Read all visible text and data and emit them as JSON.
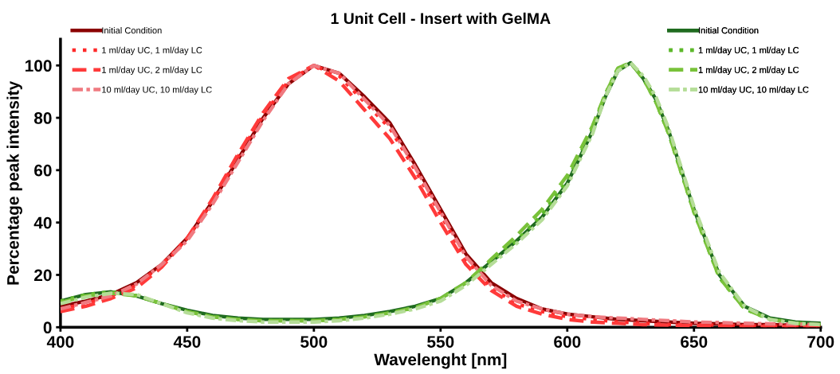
{
  "chart_data": {
    "type": "line",
    "title": "1 Unit Cell - Insert with GelMA",
    "xlabel": "Wavelenght [nm]",
    "ylabel": "Percentage peak intensity",
    "x": [
      400,
      410,
      420,
      430,
      440,
      450,
      460,
      470,
      480,
      490,
      500,
      510,
      520,
      530,
      540,
      550,
      560,
      570,
      580,
      590,
      600,
      610,
      620,
      630,
      640,
      650,
      660,
      670,
      680,
      690,
      700
    ],
    "xlim": [
      400,
      700
    ],
    "xticks": [
      400,
      450,
      500,
      550,
      600,
      650,
      700
    ],
    "ylim": [
      0,
      110
    ],
    "yticks": [
      0,
      20,
      40,
      60,
      80,
      100
    ],
    "grid": false,
    "legend": "top",
    "marker": "none",
    "series": [
      {
        "name": "Initial Condition",
        "color": "#8b0000",
        "line_style": "solid",
        "values": [
          8,
          10,
          12.5,
          17,
          24,
          34,
          48,
          64,
          80,
          93,
          100,
          97,
          88,
          78,
          62,
          45,
          28,
          17,
          11,
          7,
          5,
          4,
          3,
          2.5,
          2,
          1.5,
          1.3,
          1,
          1,
          0.8,
          0.5
        ]
      },
      {
        "name": "1 ml/day UC, 1 ml/day LC",
        "color": "#ff2a2a",
        "line_style": "dotted",
        "values": [
          7,
          9,
          12,
          16,
          24,
          34,
          48,
          65,
          81,
          94,
          100,
          96,
          86,
          76,
          60,
          43,
          26,
          15,
          9,
          6,
          4,
          3,
          2,
          1.5,
          1,
          1,
          0.8,
          0.6,
          0.5,
          0.4,
          0.3
        ]
      },
      {
        "name": "1 ml/day UC, 2 ml/day LC",
        "color": "#ff3a3a",
        "line_style": "dashed",
        "values": [
          6,
          8,
          11,
          15,
          23,
          34,
          49,
          66,
          82,
          95,
          100,
          94,
          83,
          72,
          57,
          40,
          24,
          14,
          8,
          5,
          3,
          2,
          1.5,
          1,
          0.8,
          0.6,
          0.5,
          0.4,
          0.3,
          0.3,
          0.2
        ]
      },
      {
        "name": "10 ml/day UC, 10 ml/day LC",
        "color": "#f07a80",
        "line_style": "dashdot",
        "values": [
          7,
          9.5,
          12,
          16.5,
          24,
          33,
          47,
          63,
          79,
          93,
          100,
          97,
          87,
          77,
          61,
          44,
          27,
          16,
          10,
          7,
          5,
          4,
          3.5,
          3,
          2.5,
          2,
          1.8,
          1.5,
          1.3,
          1.2,
          1
        ]
      },
      {
        "name": "Initial Condition",
        "color": "#1f6b1f",
        "line_style": "solid",
        "x": [
          400,
          410,
          420,
          430,
          440,
          450,
          460,
          470,
          480,
          490,
          500,
          510,
          520,
          530,
          540,
          550,
          560,
          570,
          580,
          590,
          600,
          610,
          615,
          620,
          625,
          630,
          635,
          640,
          650,
          660,
          670,
          680,
          690,
          700
        ],
        "values": [
          10,
          12.5,
          13.5,
          12,
          9,
          6.5,
          4.5,
          3.5,
          3,
          3,
          3,
          3.5,
          4.5,
          6,
          8,
          11,
          17,
          25,
          33,
          42,
          55,
          75,
          88,
          98,
          101,
          95,
          87,
          75,
          45,
          20,
          8,
          3.5,
          2,
          1.5
        ]
      },
      {
        "name": "1 ml/day UC, 1 ml/day LC",
        "color": "#5cb82a",
        "line_style": "dotted",
        "x": [
          400,
          410,
          420,
          430,
          440,
          450,
          460,
          470,
          480,
          490,
          500,
          510,
          520,
          530,
          540,
          550,
          560,
          570,
          580,
          590,
          600,
          610,
          615,
          620,
          625,
          630,
          635,
          640,
          650,
          660,
          670,
          680,
          690,
          700
        ],
        "values": [
          10,
          12.5,
          13.5,
          12,
          9,
          6,
          4,
          3,
          2.5,
          2.5,
          2.5,
          3,
          4,
          5.5,
          7.5,
          11,
          17,
          25,
          33,
          43,
          56,
          76,
          89,
          99,
          101,
          95,
          86,
          74,
          44,
          19,
          7,
          3,
          1.5,
          1
        ]
      },
      {
        "name": "1 ml/day UC, 2 ml/day LC",
        "color": "#79c23a",
        "line_style": "dashed",
        "x": [
          400,
          410,
          420,
          430,
          440,
          450,
          460,
          470,
          480,
          490,
          500,
          510,
          520,
          530,
          540,
          550,
          560,
          570,
          580,
          590,
          600,
          610,
          615,
          620,
          625,
          630,
          635,
          640,
          650,
          660,
          670,
          680,
          690,
          700
        ],
        "values": [
          9.5,
          12,
          13,
          12,
          9,
          6,
          4,
          3,
          2.5,
          2.5,
          2.5,
          3,
          4,
          5.5,
          7.5,
          11,
          17,
          26,
          35,
          45,
          58,
          77,
          89,
          99,
          101,
          95,
          86,
          74,
          44,
          19,
          7,
          3,
          1.5,
          1
        ]
      },
      {
        "name": "10 ml/day UC, 10 ml/day LC",
        "color": "#b5dd98",
        "line_style": "dashdot",
        "x": [
          400,
          410,
          420,
          430,
          440,
          450,
          460,
          470,
          480,
          490,
          500,
          510,
          520,
          530,
          540,
          550,
          560,
          570,
          580,
          590,
          600,
          610,
          615,
          620,
          625,
          630,
          635,
          640,
          650,
          660,
          670,
          680,
          690,
          700
        ],
        "values": [
          9,
          11.5,
          13,
          12.5,
          9,
          5.5,
          3.5,
          2.5,
          2,
          2,
          2,
          2.5,
          3.5,
          5,
          7,
          10,
          16,
          24,
          32,
          41,
          54,
          74,
          88,
          98,
          101,
          96,
          88,
          76,
          46,
          21,
          8,
          3,
          1.5,
          1
        ]
      }
    ]
  }
}
